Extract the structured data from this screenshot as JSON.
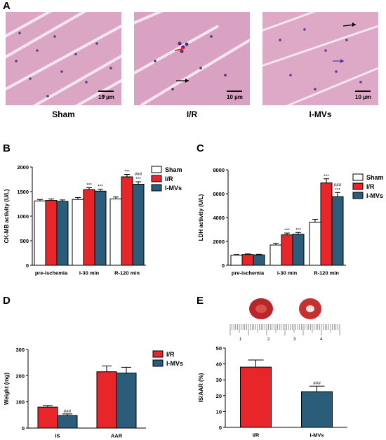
{
  "panels": {
    "a": "A",
    "b": "B",
    "c": "C",
    "d": "D",
    "e": "E"
  },
  "micrographs": [
    {
      "label": "Sham",
      "scale": "10 µm"
    },
    {
      "label": "I/R",
      "scale": "10 µm"
    },
    {
      "label": "I-MVs",
      "scale": "10 µm"
    }
  ],
  "colors": {
    "sham": "#ffffff",
    "ir": "#e8262a",
    "imvs": "#2b5d7a",
    "tissue": "#dba6c4",
    "gap": "#f3e6ef"
  },
  "ruler": {
    "numbers": [
      "1",
      "2",
      "3",
      "4"
    ]
  },
  "chart_data": [
    {
      "id": "B",
      "type": "bar",
      "ylabel": "CK-MB activity (U/L)",
      "ylim": [
        0,
        2000
      ],
      "yticks": [
        0,
        500,
        1000,
        1500,
        2000
      ],
      "categories": [
        "pre-ischemia",
        "I-30 min",
        "R-120 min"
      ],
      "legend": [
        "Sham",
        "I/R",
        "I-MVs"
      ],
      "series": [
        {
          "name": "Sham",
          "values": [
            1310,
            1340,
            1350
          ],
          "errors": [
            30,
            40,
            40
          ]
        },
        {
          "name": "I/R",
          "values": [
            1320,
            1540,
            1800
          ],
          "errors": [
            30,
            40,
            50
          ]
        },
        {
          "name": "I-MVs",
          "values": [
            1300,
            1510,
            1650
          ],
          "errors": [
            30,
            40,
            50
          ]
        }
      ],
      "annotations": [
        {
          "category": 1,
          "series": 1,
          "text": "***"
        },
        {
          "category": 1,
          "series": 2,
          "text": "***"
        },
        {
          "category": 2,
          "series": 1,
          "text": "***"
        },
        {
          "category": 2,
          "series": 2,
          "text": "***"
        },
        {
          "category": 2,
          "series": 2,
          "text": "###"
        }
      ]
    },
    {
      "id": "C",
      "type": "bar",
      "ylabel": "LDH activity (U/L)",
      "ylim": [
        0,
        8000
      ],
      "yticks": [
        0,
        2000,
        4000,
        6000,
        8000
      ],
      "categories": [
        "pre-ischemia",
        "I-30 min",
        "R-120 min"
      ],
      "legend": [
        "Sham",
        "I/R",
        "I-MVs"
      ],
      "series": [
        {
          "name": "Sham",
          "values": [
            850,
            1700,
            3600
          ],
          "errors": [
            50,
            150,
            250
          ]
        },
        {
          "name": "I/R",
          "values": [
            900,
            2550,
            6900
          ],
          "errors": [
            50,
            150,
            350
          ]
        },
        {
          "name": "I-MVs",
          "values": [
            870,
            2600,
            5750
          ],
          "errors": [
            50,
            150,
            350
          ]
        }
      ],
      "annotations": [
        {
          "category": 1,
          "series": 1,
          "text": "***"
        },
        {
          "category": 1,
          "series": 2,
          "text": "***"
        },
        {
          "category": 2,
          "series": 1,
          "text": "***"
        },
        {
          "category": 2,
          "series": 2,
          "text": "***"
        },
        {
          "category": 2,
          "series": 2,
          "text": "###"
        }
      ]
    },
    {
      "id": "D",
      "type": "bar",
      "ylabel": "Weight (mg)",
      "ylim": [
        0,
        300
      ],
      "yticks": [
        0,
        100,
        200,
        300
      ],
      "categories": [
        "IS",
        "AAR"
      ],
      "legend": [
        "I/R",
        "I-MVs"
      ],
      "series": [
        {
          "name": "I/R",
          "values": [
            80,
            215
          ],
          "errors": [
            6,
            22
          ]
        },
        {
          "name": "I-MVs",
          "values": [
            48,
            210
          ],
          "errors": [
            6,
            22
          ]
        }
      ],
      "annotations": [
        {
          "category": 0,
          "series": 1,
          "text": "###"
        }
      ]
    },
    {
      "id": "E",
      "type": "bar",
      "ylabel": "IS/AAR (%)",
      "ylim": [
        0,
        50
      ],
      "yticks": [
        0,
        10,
        20,
        30,
        40,
        50
      ],
      "categories": [
        "I/R",
        "I-MVs"
      ],
      "legend": [],
      "series": [
        {
          "name": "I/R",
          "values": [
            38,
            22.5
          ],
          "errors": [
            4.5,
            3.5
          ]
        }
      ],
      "annotations": [
        {
          "category": 1,
          "series": 0,
          "text": "###"
        }
      ]
    }
  ]
}
